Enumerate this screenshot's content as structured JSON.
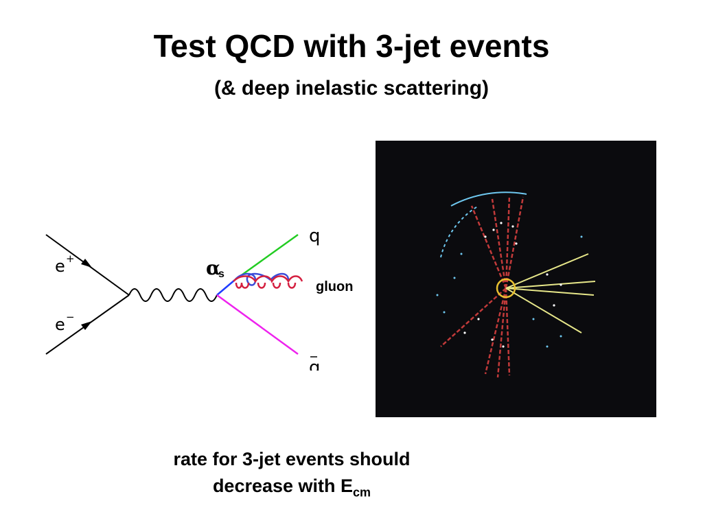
{
  "slide": {
    "title": "Test QCD with 3-jet events",
    "subtitle": "(& deep inelastic scattering)"
  },
  "diagram": {
    "positron_label": "e",
    "positron_sup": "+",
    "electron_label": "e",
    "electron_sup": "−",
    "coupling_symbol": "α",
    "coupling_sub": "s",
    "quark_label": "q",
    "antiquark_label": "q",
    "gluon_label": "gluon",
    "colors": {
      "quark_line": "#22cc22",
      "antiquark_line": "#ee22ee",
      "vertex_segment": "#1f3cff",
      "gluon_blue": "#3b4bd8",
      "gluon_red": "#d42040"
    }
  },
  "event_display": {
    "colors": {
      "background": "#0b0b0e",
      "jet_red": "#c23a3a",
      "jet_yellow": "#e8e88a",
      "hit_blue": "#6fc8f0",
      "vertex_ring": "#e8c030"
    }
  },
  "caption": {
    "line1": "rate for 3-jet events should",
    "line2_prefix": "decrease with E",
    "line2_sub": "cm"
  }
}
